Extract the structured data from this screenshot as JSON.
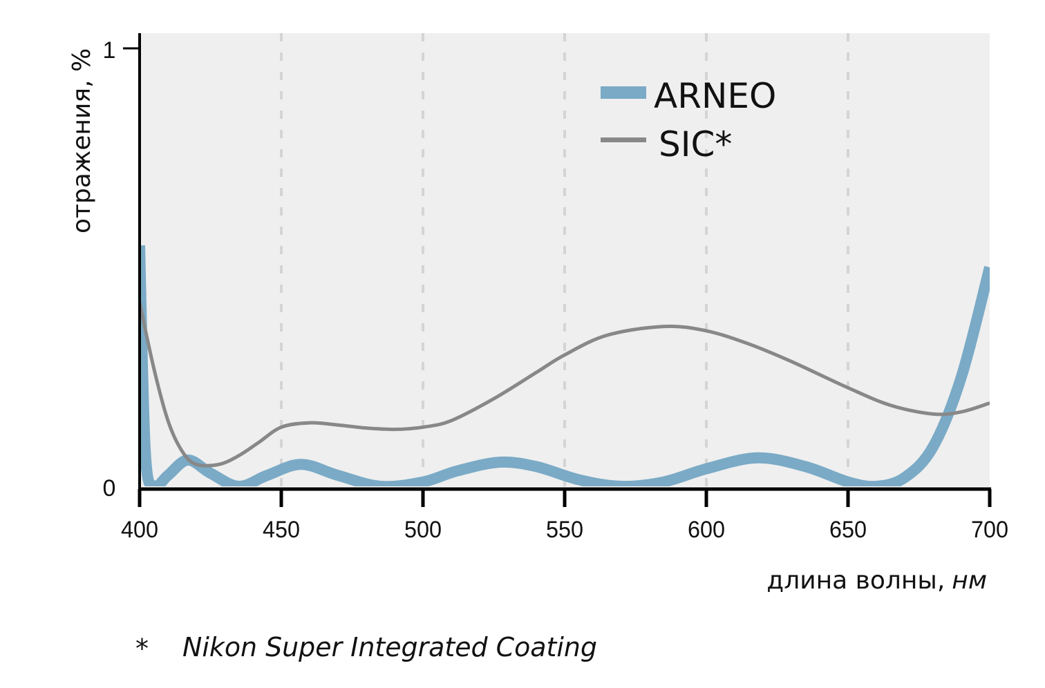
{
  "chart_data": {
    "type": "line",
    "title": "",
    "xlabel": "длина волны,",
    "xlabel_unit": "нм",
    "ylabel": "отражения, %",
    "xlim": [
      400,
      700
    ],
    "ylim": [
      0,
      1
    ],
    "x_ticks": [
      400,
      450,
      500,
      550,
      600,
      650,
      700
    ],
    "x_tick_labels": [
      "400",
      "450",
      "500",
      "550",
      "600",
      "650",
      "700"
    ],
    "y_ticks": [
      0,
      1
    ],
    "y_tick_labels": [
      "0",
      "1"
    ],
    "grid": "vertical dashed at 450, 500, 550, 600, 650",
    "legend_position": "top-right",
    "series": [
      {
        "name": "ARNEO",
        "color": "#7aaac6",
        "x": [
          400,
          402,
          405,
          410,
          417,
          425,
          435,
          445,
          457,
          470,
          485,
          500,
          512,
          527,
          540,
          555,
          570,
          585,
          600,
          618,
          635,
          650,
          660,
          670,
          680,
          690,
          700
        ],
        "y": [
          0.55,
          0.08,
          0.0,
          0.025,
          0.06,
          0.03,
          0.0,
          0.025,
          0.05,
          0.025,
          0.0,
          0.01,
          0.035,
          0.055,
          0.045,
          0.015,
          0.0,
          0.01,
          0.04,
          0.065,
          0.045,
          0.01,
          0.0,
          0.02,
          0.09,
          0.25,
          0.5
        ]
      },
      {
        "name": "SIC*",
        "color": "#888888",
        "x": [
          400,
          405,
          410,
          415,
          420,
          428,
          435,
          442,
          450,
          460,
          470,
          480,
          490,
          500,
          510,
          525,
          540,
          550,
          565,
          585,
          600,
          615,
          630,
          650,
          665,
          680,
          690,
          700
        ],
        "y": [
          0.42,
          0.27,
          0.15,
          0.08,
          0.05,
          0.05,
          0.07,
          0.1,
          0.135,
          0.145,
          0.14,
          0.133,
          0.13,
          0.135,
          0.15,
          0.2,
          0.26,
          0.3,
          0.345,
          0.365,
          0.355,
          0.325,
          0.285,
          0.225,
          0.185,
          0.165,
          0.17,
          0.19
        ]
      }
    ],
    "legend": [
      "ARNEO",
      "SIC*"
    ],
    "footnote_marker": "*",
    "footnote": "Nikon Super Integrated Coating"
  },
  "colors": {
    "plot_background": "#efefef",
    "grid": "#d4d4d4",
    "axis": "#000000"
  }
}
